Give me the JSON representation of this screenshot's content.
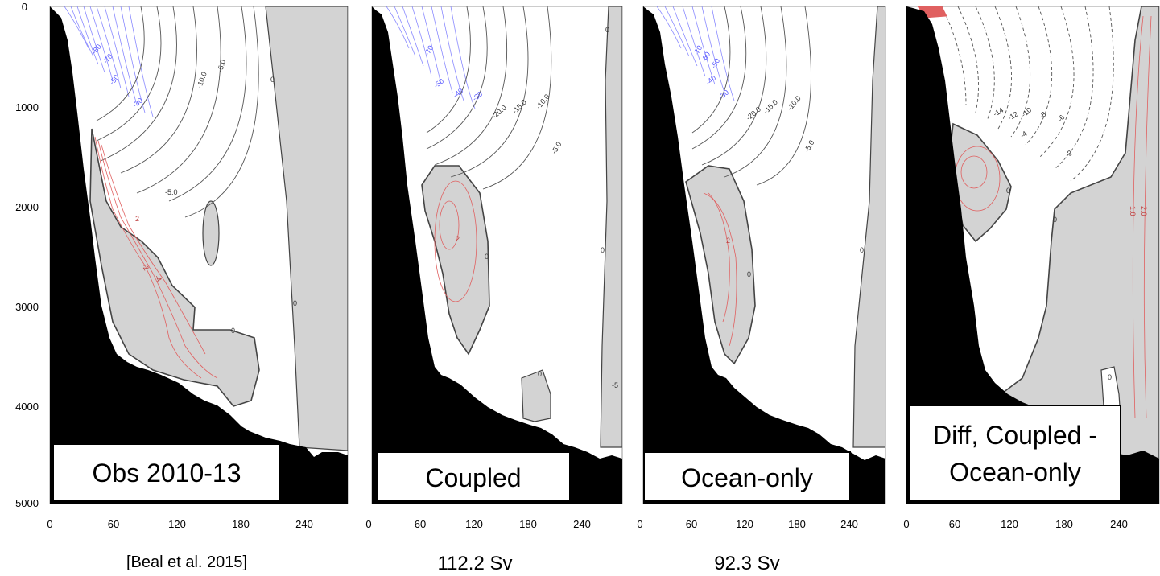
{
  "figure": {
    "y_axis_ticks": [
      "0",
      "1000",
      "2000",
      "3000",
      "4000",
      "5000"
    ],
    "x_axis_ticks": [
      "0",
      "60",
      "120",
      "180",
      "240"
    ]
  },
  "chart_data": [
    {
      "type": "contour",
      "panel_label": "Obs 2010-13",
      "caption": "[Beal et al. 2015]",
      "xlim": [
        0,
        280
      ],
      "ylim": [
        0,
        5000
      ],
      "xticks": [
        0,
        60,
        120,
        180,
        240
      ],
      "yticks": [
        0,
        1000,
        2000,
        3000,
        4000,
        5000
      ],
      "y_inverted": true,
      "contour_labels": [
        "-80",
        "-70",
        "-50",
        "-30",
        "-10.0",
        "-5.0",
        "-5.0",
        "0",
        "0",
        "-2",
        "-4",
        "2",
        "0"
      ],
      "colors": {
        "negative": "#8a8aff",
        "positive": "#e06060",
        "zero_line": "#444444",
        "positive_fill": "#d3d3d3",
        "land": "#000000"
      }
    },
    {
      "type": "contour",
      "panel_label": "Coupled",
      "caption": "112.2 Sv",
      "xlim": [
        0,
        280
      ],
      "ylim": [
        0,
        5000
      ],
      "xticks": [
        0,
        60,
        120,
        180,
        240
      ],
      "y_inverted": true,
      "contour_labels": [
        "-70",
        "-50",
        "-40",
        "-30",
        "-20.0",
        "-15.0",
        "-10.0",
        "-5.0",
        "0",
        "2",
        "0",
        "0",
        "-5",
        "0"
      ],
      "colors": {
        "negative": "#8a8aff",
        "positive": "#e06060",
        "zero_line": "#444444",
        "positive_fill": "#d3d3d3",
        "land": "#000000"
      }
    },
    {
      "type": "contour",
      "panel_label": "Ocean-only",
      "caption": "92.3 Sv",
      "xlim": [
        0,
        280
      ],
      "ylim": [
        0,
        5000
      ],
      "xticks": [
        0,
        60,
        120,
        180,
        240
      ],
      "y_inverted": true,
      "contour_labels": [
        "-70",
        "-60",
        "-50",
        "-40",
        "-30",
        "-20.0",
        "-15.0",
        "-10.0",
        "-5.0",
        "2",
        "0",
        "0"
      ],
      "colors": {
        "negative": "#8a8aff",
        "positive": "#e06060",
        "zero_line": "#444444",
        "positive_fill": "#d3d3d3",
        "land": "#000000"
      }
    },
    {
      "type": "contour",
      "panel_label": "Diff, Coupled - Ocean-only",
      "panel_label_lines": [
        "Diff, Coupled -",
        "Ocean-only"
      ],
      "caption": "",
      "xlim": [
        0,
        280
      ],
      "ylim": [
        0,
        5000
      ],
      "xticks": [
        0,
        60,
        120,
        180,
        240
      ],
      "y_inverted": true,
      "contour_labels": [
        "-14",
        "-12",
        "-10",
        "-8",
        "-6",
        "-4",
        "-2",
        "0",
        "1.0",
        "2.0",
        "0",
        "0"
      ],
      "colors": {
        "negative": "#555555",
        "positive": "#e06060",
        "zero_line": "#444444",
        "positive_fill": "#d3d3d3",
        "land": "#000000"
      }
    }
  ]
}
